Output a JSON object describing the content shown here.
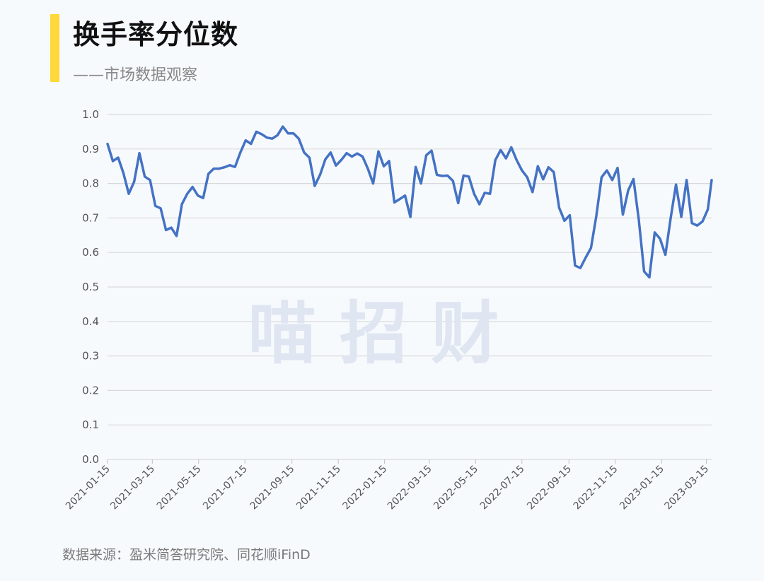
{
  "header": {
    "title": "换手率分位数",
    "subtitle": "——市场数据观察"
  },
  "footer": {
    "source": "数据来源：盈米简答研究院、同花顺iFinD"
  },
  "watermark": "喵 招 财",
  "colors": {
    "line": "#4472c4",
    "accent": "#ffd83a",
    "grid": "#d9d9d9",
    "watermark": "#dfe6f2"
  },
  "chart_data": {
    "type": "line",
    "title": "",
    "xlabel": "",
    "ylabel": "",
    "ylim": [
      0,
      1.0
    ],
    "yticks": [
      "0.0",
      "0.1",
      "0.2",
      "0.3",
      "0.4",
      "0.5",
      "0.6",
      "0.7",
      "0.8",
      "0.9",
      "1.0"
    ],
    "xlim": [
      "2021-01-15",
      "2023-03-22"
    ],
    "xticks": [
      "2021-01-15",
      "2021-03-15",
      "2021-05-15",
      "2021-07-15",
      "2021-09-15",
      "2021-11-15",
      "2022-01-15",
      "2022-03-15",
      "2022-05-15",
      "2022-07-15",
      "2022-09-15",
      "2022-11-15",
      "2023-01-15",
      "2023-03-15"
    ],
    "grid": true,
    "legend": "none",
    "series": [
      {
        "x": [
          "2021-01-15",
          "2021-01-22",
          "2021-01-29",
          "2021-02-05",
          "2021-02-12",
          "2021-02-19",
          "2021-02-26",
          "2021-03-05",
          "2021-03-12",
          "2021-03-19",
          "2021-03-26",
          "2021-04-02",
          "2021-04-09",
          "2021-04-16",
          "2021-04-23",
          "2021-04-30",
          "2021-05-07",
          "2021-05-14",
          "2021-05-21",
          "2021-05-28",
          "2021-06-04",
          "2021-06-11",
          "2021-06-18",
          "2021-06-25",
          "2021-07-02",
          "2021-07-09",
          "2021-07-16",
          "2021-07-23",
          "2021-07-30",
          "2021-08-06",
          "2021-08-13",
          "2021-08-20",
          "2021-08-27",
          "2021-09-03",
          "2021-09-10",
          "2021-09-17",
          "2021-09-24",
          "2021-10-01",
          "2021-10-08",
          "2021-10-15",
          "2021-10-22",
          "2021-10-29",
          "2021-11-05",
          "2021-11-12",
          "2021-11-19",
          "2021-11-26",
          "2021-12-03",
          "2021-12-10",
          "2021-12-17",
          "2021-12-24",
          "2021-12-31",
          "2022-01-07",
          "2022-01-14",
          "2022-01-21",
          "2022-01-28",
          "2022-02-04",
          "2022-02-11",
          "2022-02-18",
          "2022-02-25",
          "2022-03-04",
          "2022-03-11",
          "2022-03-18",
          "2022-03-25",
          "2022-04-01",
          "2022-04-08",
          "2022-04-15",
          "2022-04-22",
          "2022-04-29",
          "2022-05-06",
          "2022-05-13",
          "2022-05-20",
          "2022-05-27",
          "2022-06-03",
          "2022-06-10",
          "2022-06-17",
          "2022-06-24",
          "2022-07-01",
          "2022-07-08",
          "2022-07-15",
          "2022-07-22",
          "2022-07-29",
          "2022-08-05",
          "2022-08-12",
          "2022-08-19",
          "2022-08-26",
          "2022-09-02",
          "2022-09-09",
          "2022-09-16",
          "2022-09-23",
          "2022-09-30",
          "2022-10-07",
          "2022-10-14",
          "2022-10-21",
          "2022-10-28",
          "2022-11-04",
          "2022-11-11",
          "2022-11-18",
          "2022-11-25",
          "2022-12-02",
          "2022-12-09",
          "2022-12-16",
          "2022-12-23",
          "2022-12-30",
          "2023-01-06",
          "2023-01-13",
          "2023-01-20",
          "2023-01-27",
          "2023-02-03",
          "2023-02-10",
          "2023-02-17",
          "2023-02-24",
          "2023-03-03",
          "2023-03-10",
          "2023-03-17",
          "2023-03-22"
        ],
        "values": [
          0.915,
          0.865,
          0.875,
          0.83,
          0.77,
          0.805,
          0.888,
          0.82,
          0.81,
          0.735,
          0.728,
          0.665,
          0.672,
          0.648,
          0.74,
          0.77,
          0.79,
          0.765,
          0.758,
          0.828,
          0.843,
          0.843,
          0.847,
          0.853,
          0.848,
          0.89,
          0.925,
          0.915,
          0.95,
          0.943,
          0.933,
          0.93,
          0.94,
          0.965,
          0.945,
          0.945,
          0.93,
          0.89,
          0.875,
          0.793,
          0.825,
          0.87,
          0.89,
          0.852,
          0.868,
          0.888,
          0.878,
          0.887,
          0.878,
          0.843,
          0.8,
          0.893,
          0.85,
          0.865,
          0.745,
          0.755,
          0.765,
          0.703,
          0.848,
          0.8,
          0.882,
          0.895,
          0.825,
          0.822,
          0.823,
          0.808,
          0.743,
          0.823,
          0.82,
          0.77,
          0.74,
          0.773,
          0.77,
          0.868,
          0.897,
          0.873,
          0.905,
          0.868,
          0.838,
          0.818,
          0.775,
          0.85,
          0.812,
          0.847,
          0.833,
          0.73,
          0.692,
          0.708,
          0.562,
          0.555,
          0.585,
          0.613,
          0.705,
          0.818,
          0.838,
          0.81,
          0.845,
          0.71,
          0.78,
          0.813,
          0.695,
          0.545,
          0.528,
          0.658,
          0.64,
          0.593,
          0.7,
          0.797,
          0.703,
          0.81,
          0.685,
          0.678,
          0.69,
          0.725,
          0.81
        ]
      }
    ]
  }
}
